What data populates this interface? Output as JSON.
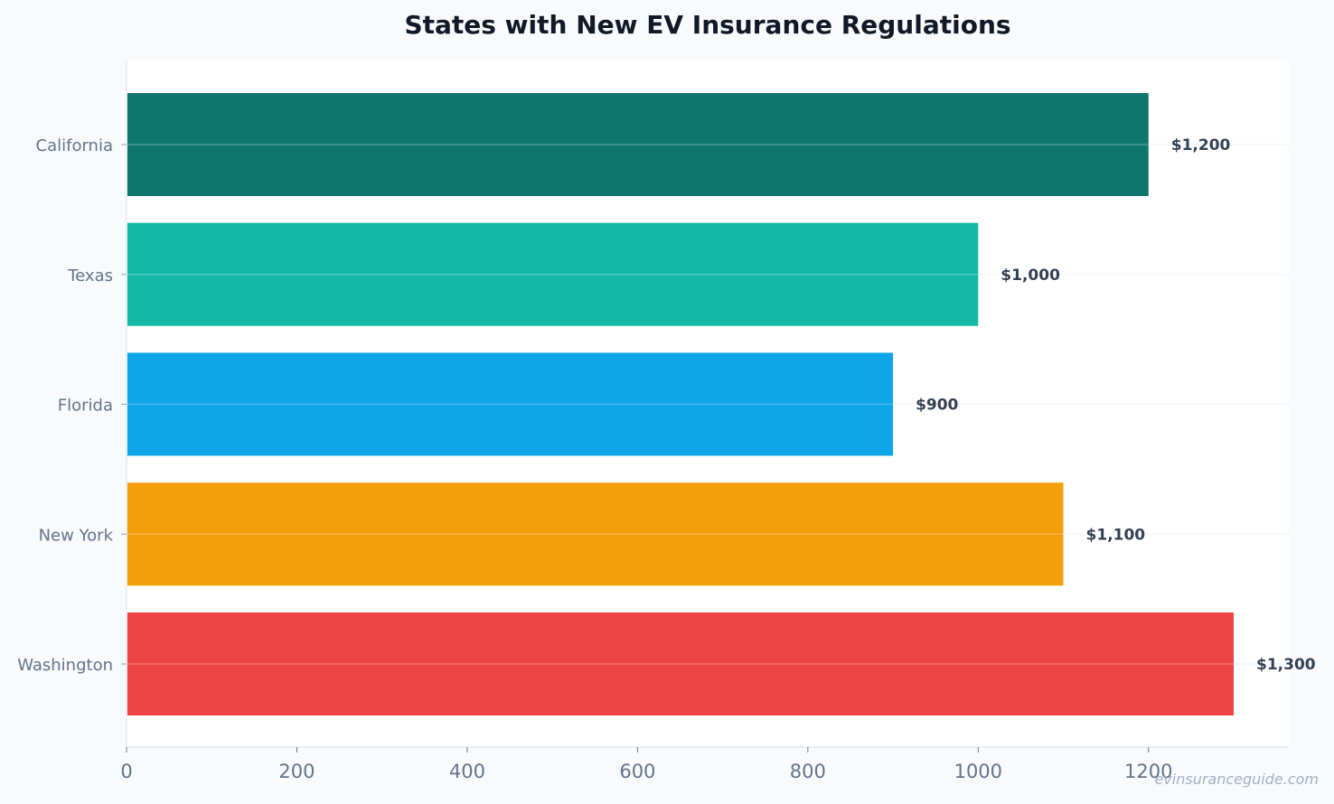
{
  "chart_data": {
    "type": "bar",
    "orientation": "horizontal",
    "title": "States with New EV Insurance Regulations",
    "categories": [
      "California",
      "Texas",
      "Florida",
      "New York",
      "Washington"
    ],
    "values": [
      1200,
      1000,
      900,
      1100,
      1300
    ],
    "value_labels": [
      "$1,200",
      "$1,000",
      "$900",
      "$1,100",
      "$1,300"
    ],
    "bar_colors": [
      "#0f766e",
      "#14b8a6",
      "#0ea5e9",
      "#f59e0b",
      "#ef4444"
    ],
    "x_ticks": [
      0,
      200,
      400,
      600,
      800,
      1000,
      1200
    ],
    "xlim": [
      0,
      1365
    ],
    "grid": true,
    "xlabel": "",
    "ylabel": ""
  },
  "watermark": "evinsuranceguide.com",
  "colors": {
    "background": "#f8fafc",
    "plot_background": "#ffffff",
    "title": "#111827",
    "axis_text": "#64748b",
    "value_text": "#334155"
  }
}
